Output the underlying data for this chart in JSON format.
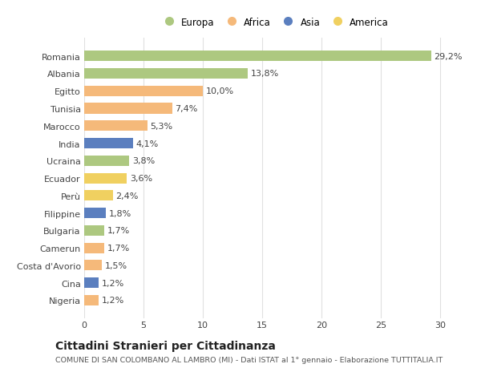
{
  "categories": [
    "Romania",
    "Albania",
    "Egitto",
    "Tunisia",
    "Marocco",
    "India",
    "Ucraina",
    "Ecuador",
    "Perù",
    "Filippine",
    "Bulgaria",
    "Camerun",
    "Costa d'Avorio",
    "Cina",
    "Nigeria"
  ],
  "values": [
    29.2,
    13.8,
    10.0,
    7.4,
    5.3,
    4.1,
    3.8,
    3.6,
    2.4,
    1.8,
    1.7,
    1.7,
    1.5,
    1.2,
    1.2
  ],
  "labels": [
    "29,2%",
    "13,8%",
    "10,0%",
    "7,4%",
    "5,3%",
    "4,1%",
    "3,8%",
    "3,6%",
    "2,4%",
    "1,8%",
    "1,7%",
    "1,7%",
    "1,5%",
    "1,2%",
    "1,2%"
  ],
  "colors": [
    "#adc880",
    "#adc880",
    "#f5b97a",
    "#f5b97a",
    "#f5b97a",
    "#5b7fbf",
    "#adc880",
    "#f0d060",
    "#f0d060",
    "#5b7fbf",
    "#adc880",
    "#f5b97a",
    "#f5b97a",
    "#5b7fbf",
    "#f5b97a"
  ],
  "legend_labels": [
    "Europa",
    "Africa",
    "Asia",
    "America"
  ],
  "legend_colors": [
    "#adc880",
    "#f5b97a",
    "#5b7fbf",
    "#f0d060"
  ],
  "title": "Cittadini Stranieri per Cittadinanza",
  "subtitle": "COMUNE DI SAN COLOMBANO AL LAMBRO (MI) - Dati ISTAT al 1° gennaio - Elaborazione TUTTITALIA.IT",
  "xlim": [
    0,
    32
  ],
  "xticks": [
    0,
    5,
    10,
    15,
    20,
    25,
    30
  ],
  "background_color": "#ffffff",
  "grid_color": "#e0e0e0",
  "bar_height": 0.6,
  "label_fontsize": 8,
  "tick_fontsize": 8,
  "title_fontsize": 10,
  "subtitle_fontsize": 6.8,
  "legend_fontsize": 8.5
}
